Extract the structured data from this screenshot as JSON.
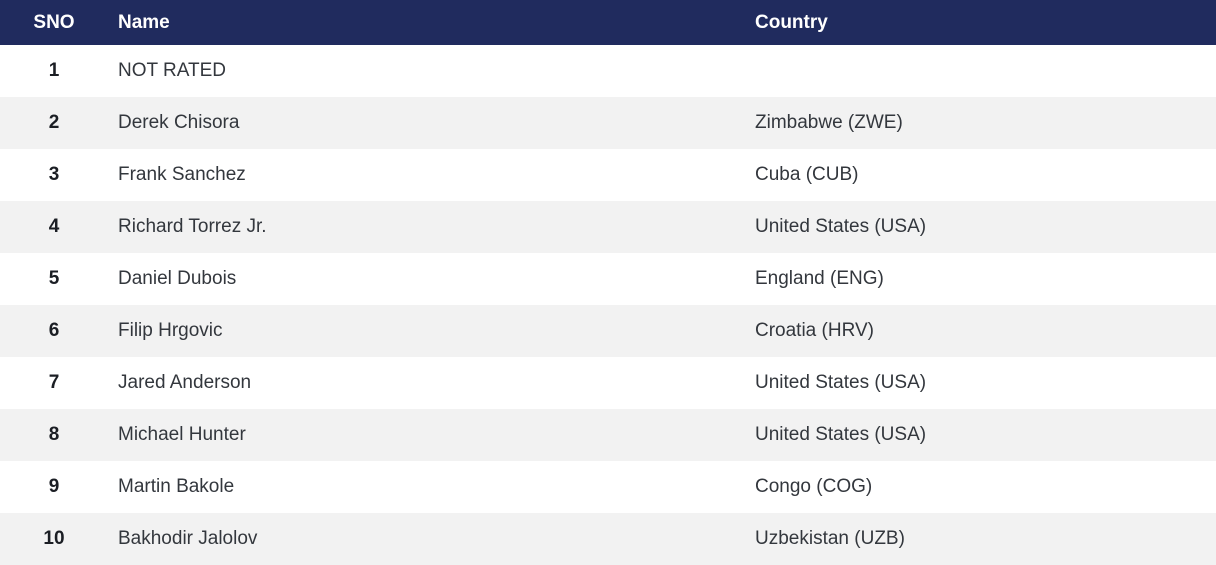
{
  "colors": {
    "header_bg": "#202b5e",
    "header_text": "#ffffff",
    "stripe": "#f2f2f2",
    "row_text": "#33373d"
  },
  "table": {
    "columns": {
      "sno": "SNO",
      "name": "Name",
      "country": "Country"
    },
    "rows": [
      {
        "sno": "1",
        "name": "NOT RATED",
        "country": ""
      },
      {
        "sno": "2",
        "name": "Derek Chisora",
        "country": "Zimbabwe (ZWE)"
      },
      {
        "sno": "3",
        "name": "Frank Sanchez",
        "country": "Cuba (CUB)"
      },
      {
        "sno": "4",
        "name": "Richard Torrez Jr.",
        "country": "United States (USA)"
      },
      {
        "sno": "5",
        "name": "Daniel Dubois",
        "country": "England (ENG)"
      },
      {
        "sno": "6",
        "name": "Filip Hrgovic",
        "country": "Croatia (HRV)"
      },
      {
        "sno": "7",
        "name": "Jared Anderson",
        "country": "United States (USA)"
      },
      {
        "sno": "8",
        "name": "Michael Hunter",
        "country": "United States (USA)"
      },
      {
        "sno": "9",
        "name": "Martin Bakole",
        "country": "Congo (COG)"
      },
      {
        "sno": "10",
        "name": "Bakhodir Jalolov",
        "country": "Uzbekistan (UZB)"
      }
    ]
  }
}
